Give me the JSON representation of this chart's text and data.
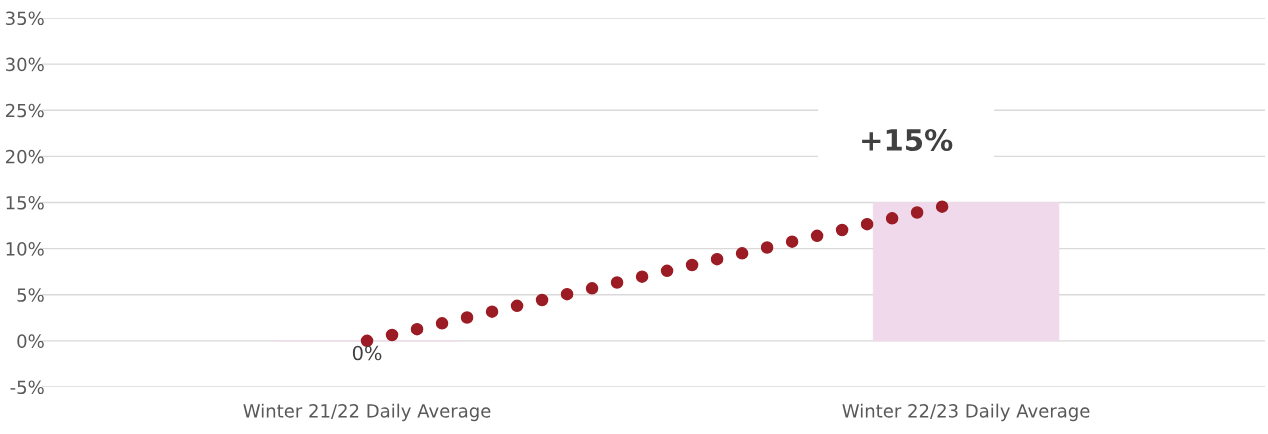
{
  "chart_data": {
    "type": "bar",
    "categories": [
      "Winter 21/22 Daily Average",
      "Winter 22/23 Daily Average"
    ],
    "values": [
      0,
      15
    ],
    "colors": [
      "#f0d9ea",
      "#f0d9ea"
    ],
    "value_labels": [
      "0%",
      "+15%"
    ],
    "ylim": [
      -5,
      35
    ],
    "yticks": [
      {
        "value": -5,
        "label": "-5%"
      },
      {
        "value": 0,
        "label": "0%"
      },
      {
        "value": 5,
        "label": "5%"
      },
      {
        "value": 10,
        "label": "10%"
      },
      {
        "value": 15,
        "label": "15%"
      },
      {
        "value": 20,
        "label": "20%"
      },
      {
        "value": 25,
        "label": "25%"
      },
      {
        "value": 30,
        "label": "30%"
      },
      {
        "value": 35,
        "label": "35%"
      }
    ],
    "grid": "y"
  }
}
